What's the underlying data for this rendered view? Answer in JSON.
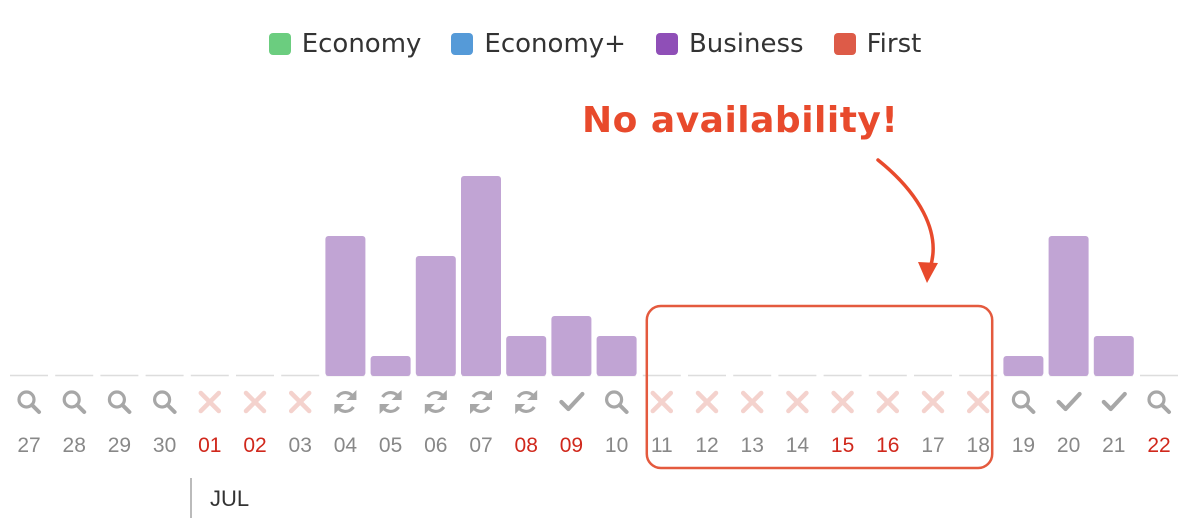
{
  "legend": [
    {
      "label": "Economy",
      "color": "#6bcd7f"
    },
    {
      "label": "Economy+",
      "color": "#559ad8"
    },
    {
      "label": "Business",
      "color": "#8f4fb7"
    },
    {
      "label": "First",
      "color": "#dd5b48"
    }
  ],
  "annotation": {
    "text": "No availability!",
    "color": "#e84a2c"
  },
  "month_label": "JUL",
  "chart_data": {
    "type": "bar",
    "categories": [
      "27",
      "28",
      "29",
      "30",
      "01",
      "02",
      "03",
      "04",
      "05",
      "06",
      "07",
      "08",
      "09",
      "10",
      "11",
      "12",
      "13",
      "14",
      "15",
      "16",
      "17",
      "18",
      "19",
      "20",
      "21",
      "22"
    ],
    "series": [
      {
        "name": "Business",
        "color": "#c1a4d4",
        "values": [
          0,
          0,
          0,
          0,
          0,
          0,
          0,
          7,
          1,
          6,
          10,
          2,
          3,
          2,
          0,
          0,
          0,
          0,
          0,
          0,
          0,
          0,
          1,
          7,
          2,
          0
        ]
      }
    ],
    "status_icons": [
      "search",
      "search",
      "search",
      "search",
      "none",
      "none",
      "none",
      "refresh",
      "refresh",
      "refresh",
      "refresh",
      "refresh",
      "check",
      "search",
      "none",
      "none",
      "none",
      "none",
      "none",
      "none",
      "none",
      "none",
      "search",
      "check",
      "check",
      "search"
    ],
    "highlighted_dates": [
      "01",
      "02",
      "08",
      "09",
      "15",
      "16",
      "22"
    ],
    "highlight_color": "#d0281c",
    "date_color": "#888888",
    "ylim": [
      0,
      10
    ],
    "annotation_range": [
      "11",
      "18"
    ]
  }
}
